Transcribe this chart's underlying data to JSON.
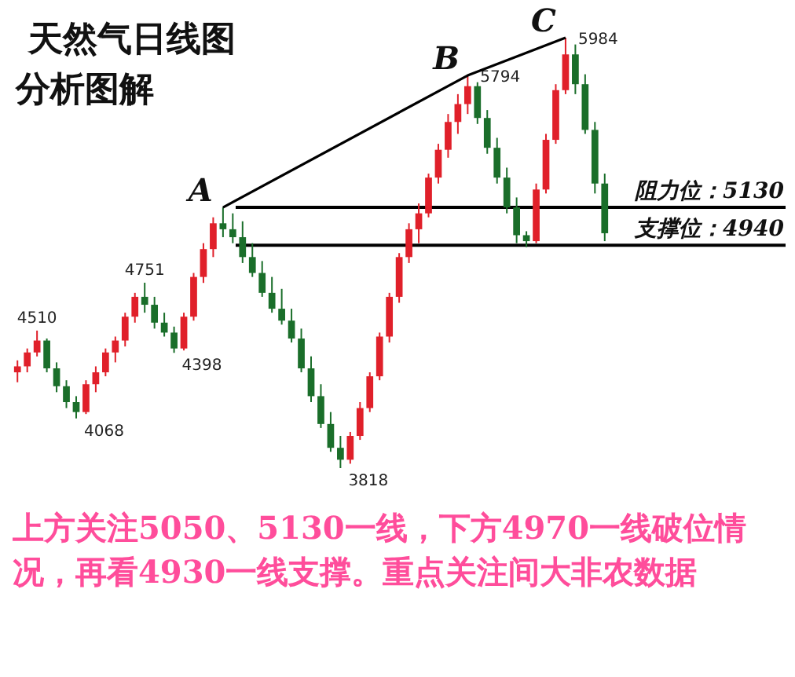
{
  "chart_data": {
    "type": "candlestick",
    "title": "天然气日线图",
    "subtitle": "分析图解",
    "categories": [
      null,
      null,
      null,
      null,
      null,
      null,
      null,
      null,
      null,
      null,
      null,
      null,
      null,
      null,
      null,
      null,
      null,
      null,
      null,
      null,
      null,
      null,
      null,
      null,
      null,
      null,
      null,
      null,
      null,
      null,
      null,
      null,
      null,
      null,
      null,
      null,
      null,
      null,
      null,
      null,
      null,
      null,
      null,
      null,
      null,
      null,
      null,
      null,
      null,
      null,
      null,
      null,
      null,
      null,
      null,
      null,
      null,
      null,
      null,
      null,
      null
    ],
    "ohlc": [
      [
        4300,
        4360,
        4250,
        4330
      ],
      [
        4330,
        4420,
        4300,
        4400
      ],
      [
        4400,
        4510,
        4380,
        4460
      ],
      [
        4460,
        4470,
        4300,
        4320
      ],
      [
        4320,
        4350,
        4200,
        4230
      ],
      [
        4230,
        4260,
        4120,
        4150
      ],
      [
        4150,
        4180,
        4068,
        4100
      ],
      [
        4100,
        4260,
        4090,
        4240
      ],
      [
        4240,
        4330,
        4200,
        4300
      ],
      [
        4300,
        4420,
        4280,
        4400
      ],
      [
        4400,
        4480,
        4350,
        4460
      ],
      [
        4460,
        4600,
        4430,
        4580
      ],
      [
        4580,
        4700,
        4550,
        4680
      ],
      [
        4680,
        4751,
        4600,
        4640
      ],
      [
        4640,
        4680,
        4520,
        4550
      ],
      [
        4550,
        4600,
        4480,
        4500
      ],
      [
        4500,
        4530,
        4398,
        4420
      ],
      [
        4420,
        4600,
        4410,
        4580
      ],
      [
        4580,
        4800,
        4560,
        4780
      ],
      [
        4780,
        4950,
        4750,
        4920
      ],
      [
        4920,
        5080,
        4880,
        5050
      ],
      [
        5050,
        5130,
        4980,
        5020
      ],
      [
        5020,
        5100,
        4950,
        4980
      ],
      [
        4980,
        5060,
        4850,
        4880
      ],
      [
        4880,
        4950,
        4780,
        4800
      ],
      [
        4800,
        4860,
        4680,
        4700
      ],
      [
        4700,
        4780,
        4600,
        4620
      ],
      [
        4620,
        4720,
        4540,
        4560
      ],
      [
        4560,
        4620,
        4450,
        4470
      ],
      [
        4470,
        4520,
        4300,
        4320
      ],
      [
        4320,
        4380,
        4150,
        4180
      ],
      [
        4180,
        4240,
        4020,
        4040
      ],
      [
        4040,
        4100,
        3900,
        3920
      ],
      [
        3920,
        3980,
        3818,
        3860
      ],
      [
        3860,
        4000,
        3840,
        3980
      ],
      [
        3980,
        4150,
        3960,
        4120
      ],
      [
        4120,
        4300,
        4100,
        4280
      ],
      [
        4280,
        4500,
        4260,
        4480
      ],
      [
        4480,
        4700,
        4450,
        4680
      ],
      [
        4680,
        4900,
        4650,
        4880
      ],
      [
        4880,
        5050,
        4850,
        5020
      ],
      [
        5020,
        5150,
        4950,
        5100
      ],
      [
        5100,
        5300,
        5080,
        5280
      ],
      [
        5280,
        5450,
        5250,
        5420
      ],
      [
        5420,
        5600,
        5380,
        5560
      ],
      [
        5560,
        5700,
        5500,
        5650
      ],
      [
        5650,
        5794,
        5600,
        5740
      ],
      [
        5740,
        5760,
        5550,
        5580
      ],
      [
        5580,
        5620,
        5400,
        5430
      ],
      [
        5430,
        5480,
        5250,
        5280
      ],
      [
        5280,
        5330,
        5100,
        5130
      ],
      [
        5130,
        5180,
        4950,
        4990
      ],
      [
        4990,
        5010,
        4930,
        4960
      ],
      [
        4960,
        5250,
        4950,
        5220
      ],
      [
        5220,
        5500,
        5200,
        5470
      ],
      [
        5470,
        5750,
        5450,
        5720
      ],
      [
        5720,
        5984,
        5700,
        5900
      ],
      [
        5900,
        5950,
        5700,
        5750
      ],
      [
        5750,
        5800,
        5500,
        5520
      ],
      [
        5520,
        5560,
        5200,
        5250
      ],
      [
        5250,
        5300,
        4960,
        5000
      ]
    ],
    "value_labels": [
      null,
      null,
      "4510",
      null,
      null,
      null,
      "4068",
      null,
      null,
      null,
      null,
      null,
      null,
      "4751",
      null,
      null,
      "4398",
      null,
      null,
      null,
      null,
      null,
      null,
      null,
      null,
      null,
      null,
      null,
      null,
      null,
      null,
      null,
      null,
      "3818",
      null,
      null,
      null,
      null,
      null,
      null,
      null,
      null,
      null,
      null,
      null,
      null,
      "5794",
      null,
      null,
      null,
      null,
      null,
      null,
      null,
      null,
      null,
      "5984",
      null,
      null,
      null,
      null
    ],
    "series": [
      {
        "type": "line",
        "color": "#000000",
        "values": [
          null,
          null,
          null,
          null,
          null,
          null,
          null,
          null,
          null,
          null,
          null,
          null,
          null,
          null,
          null,
          null,
          null,
          null,
          null,
          null,
          null,
          5130,
          null,
          null,
          null,
          null,
          null,
          null,
          null,
          null,
          null,
          null,
          null,
          null,
          null,
          null,
          null,
          null,
          null,
          null,
          null,
          null,
          null,
          null,
          null,
          null,
          5794,
          null,
          null,
          null,
          null,
          null,
          null,
          null,
          null,
          null,
          5984,
          null,
          null,
          null,
          null
        ],
        "value_labels": [
          null,
          null,
          null,
          null,
          null,
          null,
          null,
          null,
          null,
          null,
          null,
          null,
          null,
          null,
          null,
          null,
          null,
          null,
          null,
          null,
          null,
          "A",
          null,
          null,
          null,
          null,
          null,
          null,
          null,
          null,
          null,
          null,
          null,
          null,
          null,
          null,
          null,
          null,
          null,
          null,
          null,
          null,
          null,
          null,
          null,
          null,
          "B",
          null,
          null,
          null,
          null,
          null,
          null,
          null,
          null,
          null,
          "C",
          null,
          null,
          null,
          null
        ]
      }
    ],
    "ref_lines": [
      {
        "axis": "y",
        "value": 5130,
        "label": "阻力位：5130",
        "color": "#000000"
      },
      {
        "axis": "y",
        "value": 4940,
        "label": "支撑位：4940",
        "color": "#000000"
      }
    ],
    "annotations": [
      "上方关注5050、5130一线，下方4970一线破位情况，再看4930一线支撑。重点关注间大非农数据"
    ]
  }
}
